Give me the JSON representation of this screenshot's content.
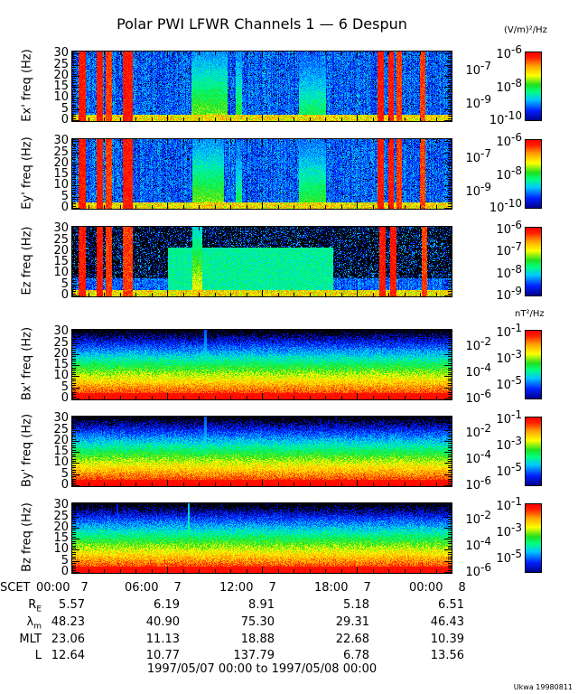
{
  "title": "Polar PWI LFWR Channels 1 — 6 Despun",
  "electric_unit": "(V/m)²/Hz",
  "magnetic_unit": "nT²/Hz",
  "chart_data": {
    "type": "heatmap",
    "title": "Polar PWI LFWR Channels 1 — 6 Despun",
    "xlabel": "SCET",
    "xlim_hours": [
      0,
      24
    ],
    "x_ticks": [
      {
        "time": "00:00",
        "day": "7"
      },
      {
        "time": "06:00",
        "day": "7"
      },
      {
        "time": "12:00",
        "day": "7"
      },
      {
        "time": "18:00",
        "day": "7"
      },
      {
        "time": "00:00",
        "day": "8"
      }
    ],
    "y_ticks": [
      "0",
      "5",
      "10",
      "15",
      "20",
      "25",
      "30"
    ],
    "ylim": [
      0,
      30
    ],
    "panels": [
      {
        "ylabel": "Ex' freq (Hz)",
        "kind": "electric",
        "cbar_exponents": [
          "-6",
          "-7",
          "-8",
          "-9",
          "-10"
        ],
        "bursts": [
          [
            0.4,
            0.8,
            0.95
          ],
          [
            1.5,
            1.9,
            0.95
          ],
          [
            2.1,
            2.5,
            0.9
          ],
          [
            3.2,
            3.8,
            0.95
          ],
          [
            7.5,
            9.8,
            0.6
          ],
          [
            10.3,
            10.7,
            0.55
          ],
          [
            14.3,
            16.0,
            0.5
          ],
          [
            19.3,
            19.7,
            0.95
          ],
          [
            20.0,
            20.3,
            0.95
          ],
          [
            20.5,
            20.8,
            0.9
          ],
          [
            22.0,
            22.3,
            0.9
          ]
        ]
      },
      {
        "ylabel": "Ey' freq (Hz)",
        "kind": "electric",
        "cbar_exponents": [
          "-6",
          "-7",
          "-8",
          "-9",
          "-10"
        ],
        "bursts": [
          [
            0.4,
            0.8,
            0.95
          ],
          [
            1.5,
            1.9,
            0.95
          ],
          [
            2.1,
            2.5,
            0.9
          ],
          [
            3.2,
            3.8,
            0.95
          ],
          [
            7.6,
            9.6,
            0.6
          ],
          [
            10.3,
            10.7,
            0.5
          ],
          [
            14.3,
            16.0,
            0.55
          ],
          [
            19.3,
            19.7,
            0.95
          ],
          [
            20.0,
            20.3,
            0.95
          ],
          [
            20.5,
            20.8,
            0.9
          ],
          [
            22.0,
            22.3,
            0.9
          ]
        ]
      },
      {
        "ylabel": "Ez freq (Hz)",
        "kind": "electric-z",
        "cbar_exponents": [
          "-6",
          "-7",
          "-8",
          "-9"
        ],
        "bursts": [
          [
            0.4,
            0.8,
            0.95
          ],
          [
            1.5,
            1.9,
            0.95
          ],
          [
            2.1,
            2.5,
            0.9
          ],
          [
            3.2,
            3.8,
            0.9
          ],
          [
            7.6,
            8.2,
            0.7
          ],
          [
            19.4,
            19.8,
            0.95
          ],
          [
            20.1,
            20.5,
            0.95
          ],
          [
            22.1,
            22.4,
            0.9
          ]
        ]
      },
      {
        "ylabel": "Bx' freq (Hz)",
        "kind": "magnetic",
        "cbar_exponents": [
          "-1",
          "-2",
          "-3",
          "-4",
          "-5",
          "-6"
        ],
        "bursts": [
          [
            8.3,
            8.5,
            0.5
          ]
        ]
      },
      {
        "ylabel": "By' freq (Hz)",
        "kind": "magnetic",
        "cbar_exponents": [
          "-1",
          "-2",
          "-3",
          "-4",
          "-5",
          "-6"
        ],
        "bursts": [
          [
            8.3,
            8.5,
            0.5
          ]
        ]
      },
      {
        "ylabel": "Bz freq (Hz)",
        "kind": "magnetic",
        "cbar_exponents": [
          "-1",
          "-2",
          "-3",
          "-4",
          "-5",
          "-6"
        ],
        "bursts": [
          [
            2.8,
            2.9,
            0.4
          ],
          [
            7.3,
            7.4,
            0.6
          ]
        ]
      }
    ]
  },
  "ephemeris": {
    "scet_label": "SCET",
    "rows": [
      {
        "label": "R",
        "sub": "E",
        "values": [
          "5.57",
          "6.19",
          "8.91",
          "5.18",
          "6.51"
        ]
      },
      {
        "label": "λ",
        "sub": "m",
        "values": [
          "48.23",
          "40.90",
          "75.30",
          "29.31",
          "46.43"
        ]
      },
      {
        "label": "MLT",
        "sub": "",
        "values": [
          "23.06",
          "11.13",
          "18.88",
          "22.68",
          "10.39"
        ]
      },
      {
        "label": "L",
        "sub": "",
        "values": [
          "12.64",
          "10.77",
          "137.79",
          "6.78",
          "13.56"
        ]
      }
    ]
  },
  "date_range": "1997/05/07 00:00 to 1997/05/08 00:00",
  "credit": "Ukwa 19980811"
}
